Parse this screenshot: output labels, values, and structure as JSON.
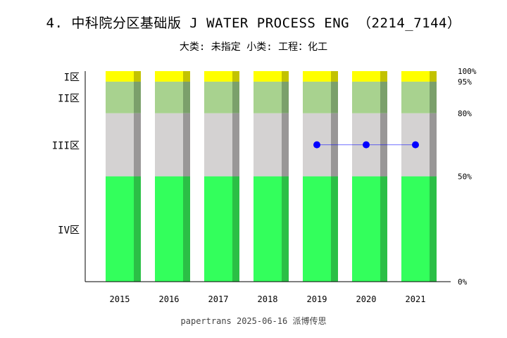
{
  "chart": {
    "title": "4. 中科院分区基础版 J WATER PROCESS ENG （2214_7144）",
    "subtitle": "大类: 未指定 小类: 工程：化工",
    "footer": "papertrans 2025-06-16 派博传思"
  },
  "chart_data": {
    "type": "bar",
    "categories": [
      "2015",
      "2016",
      "2017",
      "2018",
      "2019",
      "2020",
      "2021"
    ],
    "zones": [
      {
        "name": "IV区",
        "from": 0,
        "to": 50,
        "color": "#33ff5c",
        "shade": "#2bbf46"
      },
      {
        "name": "III区",
        "from": 50,
        "to": 80,
        "color": "#d4d2d2",
        "shade": "#999797"
      },
      {
        "name": "II区",
        "from": 80,
        "to": 95,
        "color": "#a8d28f",
        "shade": "#7ba06b"
      },
      {
        "name": "I区",
        "from": 95,
        "to": 100,
        "color": "#ffff00",
        "shade": "#c2c200"
      }
    ],
    "zone_labels": [
      "I区",
      "II区",
      "III区",
      "IV区"
    ],
    "percent_ticks": [
      "100%",
      "95%",
      "80%",
      "50%",
      "0%"
    ],
    "series": [
      {
        "x": [
          "2019",
          "2020",
          "2021"
        ],
        "values": [
          65,
          65,
          65
        ],
        "color": "#0000ff"
      }
    ],
    "ylim": [
      0,
      100
    ]
  }
}
